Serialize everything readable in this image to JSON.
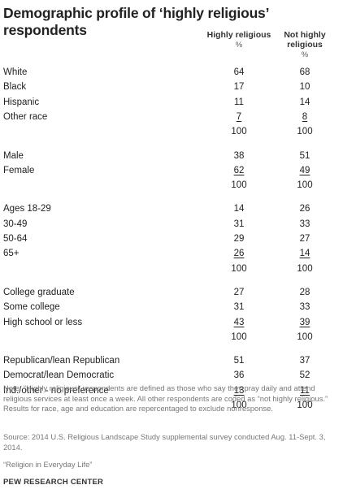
{
  "chart_data": {
    "type": "table",
    "title": "Demographic profile of ‘highly religious’ respondents",
    "columns": [
      {
        "label": "Highly religious",
        "unit": "%"
      },
      {
        "label": "Not highly religious",
        "unit": "%"
      }
    ],
    "groups": [
      {
        "rows": [
          {
            "label": "White",
            "highly": "64",
            "not_highly": "68"
          },
          {
            "label": "Black",
            "highly": "17",
            "not_highly": "10"
          },
          {
            "label": "Hispanic",
            "highly": "11",
            "not_highly": "14"
          },
          {
            "label": "Other race",
            "highly": "7",
            "not_highly": "8"
          },
          {
            "label": "",
            "highly": "100",
            "not_highly": "100"
          }
        ]
      },
      {
        "rows": [
          {
            "label": "Male",
            "highly": "38",
            "not_highly": "51"
          },
          {
            "label": "Female",
            "highly": "62",
            "not_highly": "49"
          },
          {
            "label": "",
            "highly": "100",
            "not_highly": "100"
          }
        ]
      },
      {
        "rows": [
          {
            "label": "Ages 18-29",
            "highly": "14",
            "not_highly": "26"
          },
          {
            "label": "30-49",
            "highly": "31",
            "not_highly": "33"
          },
          {
            "label": "50-64",
            "highly": "29",
            "not_highly": "27"
          },
          {
            "label": "65+",
            "highly": "26",
            "not_highly": "14"
          },
          {
            "label": "",
            "highly": "100",
            "not_highly": "100"
          }
        ]
      },
      {
        "rows": [
          {
            "label": "College graduate",
            "highly": "27",
            "not_highly": "28"
          },
          {
            "label": "Some college",
            "highly": "31",
            "not_highly": "33"
          },
          {
            "label": "High school or less",
            "highly": "43",
            "not_highly": "39"
          },
          {
            "label": "",
            "highly": "100",
            "not_highly": "100"
          }
        ]
      },
      {
        "rows": [
          {
            "label": "Republican/lean Republican",
            "highly": "51",
            "not_highly": "37"
          },
          {
            "label": "Democrat/lean Democratic",
            "highly": "36",
            "not_highly": "52"
          },
          {
            "label": "Ind./other - no preference",
            "highly": "13",
            "not_highly": "11"
          },
          {
            "label": "",
            "highly": "100",
            "not_highly": "100"
          }
        ]
      }
    ]
  },
  "notes": {
    "note": "Note: “Highly religious” respondents are defined as those who say they pray daily and attend religious services at least once a week. All other respondents are coded as “not highly religious.” Results for race, age and education are repercentaged to exclude nonresponse.",
    "source": "Source: 2014 U.S. Religious Landscape Study supplemental survey conducted Aug. 11-Sept. 3, 2014.",
    "report": "“Religion in Everyday Life”",
    "brand": "PEW RESEARCH CENTER"
  }
}
